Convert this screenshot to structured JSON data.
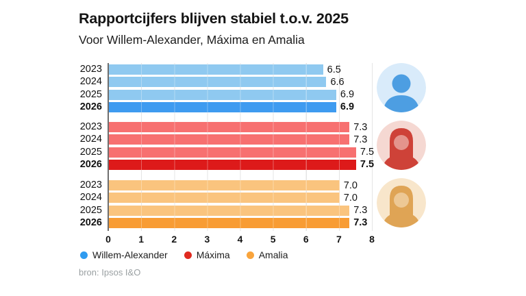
{
  "header": {
    "title": "Rapportcijfers blijven stabiel t.o.v. 2025",
    "subtitle": "Voor Willem-Alexander, Máxima en Amalia"
  },
  "chart_data": {
    "type": "bar",
    "orientation": "horizontal",
    "title": "Rapportcijfers blijven stabiel t.o.v. 2025",
    "subtitle": "Voor Willem-Alexander, Máxima en Amalia",
    "categories": [
      "2023",
      "2024",
      "2025",
      "2026"
    ],
    "highlight_category": "2026",
    "xlim": [
      0,
      8
    ],
    "x_ticks": [
      "0",
      "1",
      "2",
      "3",
      "4",
      "5",
      "6",
      "7",
      "8"
    ],
    "grid": true,
    "legend_position": "bottom",
    "series": [
      {
        "name": "Willem-Alexander",
        "values": [
          6.5,
          6.6,
          6.9,
          6.9
        ],
        "color_light": "#8FC9F0",
        "color_dark": "#3E9BF0"
      },
      {
        "name": "Máxima",
        "values": [
          7.3,
          7.3,
          7.5,
          7.5
        ],
        "color_light": "#F77070",
        "color_dark": "#DD1A1A"
      },
      {
        "name": "Amalia",
        "values": [
          7.0,
          7.0,
          7.3,
          7.3
        ],
        "color_light": "#FAC47E",
        "color_dark": "#F89C34"
      }
    ]
  },
  "legend": {
    "items": [
      {
        "label": "Willem-Alexander",
        "color": "#2F9BF0"
      },
      {
        "label": "Máxima",
        "color": "#E02A20"
      },
      {
        "label": "Amalia",
        "color": "#F9A43C"
      }
    ]
  },
  "portraits": [
    {
      "name": "Willem-Alexander",
      "icon": "portrait-willem-alexander",
      "style": "short-hair",
      "bg": "#D9EBFA",
      "fg": "#4D9EE2"
    },
    {
      "name": "Máxima",
      "icon": "portrait-maxima",
      "style": "long-hair",
      "bg": "#F5D8D2",
      "fg": "#CE4238"
    },
    {
      "name": "Amalia",
      "icon": "portrait-amalia",
      "style": "long-hair",
      "bg": "#F8E6CB",
      "fg": "#DFA455"
    }
  ],
  "source": "bron: Ipsos I&O"
}
